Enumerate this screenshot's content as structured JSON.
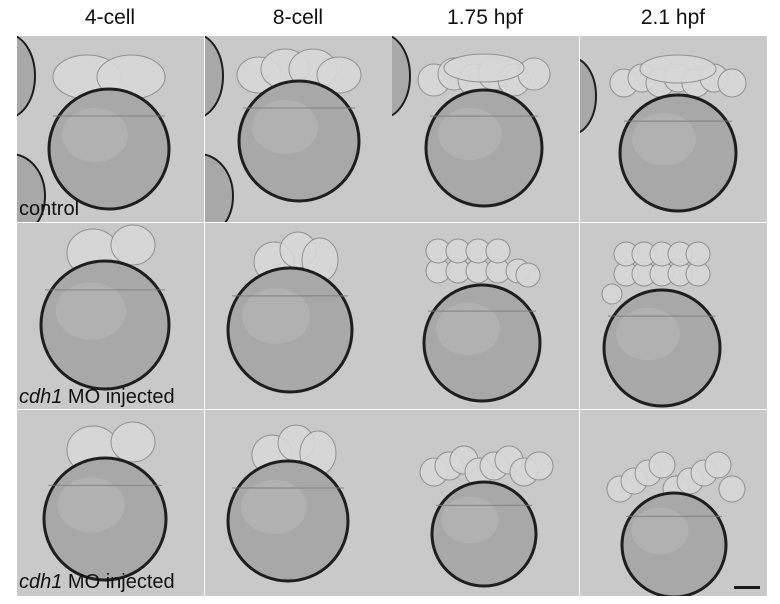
{
  "columns": [
    "4-cell",
    "8-cell",
    "1.75 hpf",
    "2.1 hpf"
  ],
  "rows": [
    {
      "label_italic": "",
      "label_rest": "control",
      "type": "control"
    },
    {
      "label_italic": "cdh1",
      "label_rest": " MO injected",
      "type": "mo"
    },
    {
      "label_italic": "cdh1",
      "label_rest": " MO injected",
      "type": "mo2"
    }
  ],
  "colors": {
    "background": "#c9c9c9",
    "yolk": "#a8a8a8",
    "yolk_edge": "#1e1e1e",
    "cells": "#d8d8d8",
    "cell_edge": "#8a8a8a"
  },
  "icons": {
    "scale_bar": "scale-bar-line"
  }
}
